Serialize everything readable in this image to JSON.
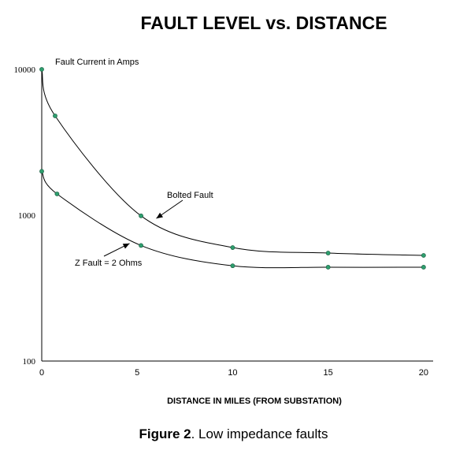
{
  "chart_data": {
    "type": "line",
    "title": "FAULT LEVEL vs. DISTANCE",
    "xlabel": "DISTANCE IN MILES (FROM SUBSTATION)",
    "ylabel": "Fault Current in Amps",
    "xlim": [
      0,
      20.5
    ],
    "ylim": [
      100,
      10000
    ],
    "yscale": "log",
    "x_ticks": [
      0,
      5,
      10,
      15,
      20
    ],
    "y_ticks": [
      100,
      1000,
      10000
    ],
    "grid": false,
    "series": [
      {
        "name": "Bolted Fault",
        "x": [
          0,
          0.7,
          5.2,
          10,
          15,
          20
        ],
        "y": [
          10000,
          4800,
          990,
          600,
          550,
          530
        ]
      },
      {
        "name": "Z Fault = 2 Ohms",
        "x": [
          0,
          0.8,
          5.2,
          10,
          15,
          20
        ],
        "y": [
          2000,
          1400,
          620,
          450,
          440,
          440
        ]
      }
    ],
    "annotations": [
      {
        "text": "Bolted Fault",
        "arrow_to": {
          "x": 6.0,
          "y": 950
        }
      },
      {
        "text": "Z Fault = 2 Ohms",
        "arrow_to": {
          "x": 4.6,
          "y": 640
        }
      }
    ],
    "colors": {
      "marker": "#2e9e6e",
      "line": "#000000"
    }
  },
  "caption": {
    "label": "Figure 2",
    "text": ". Low impedance faults"
  }
}
